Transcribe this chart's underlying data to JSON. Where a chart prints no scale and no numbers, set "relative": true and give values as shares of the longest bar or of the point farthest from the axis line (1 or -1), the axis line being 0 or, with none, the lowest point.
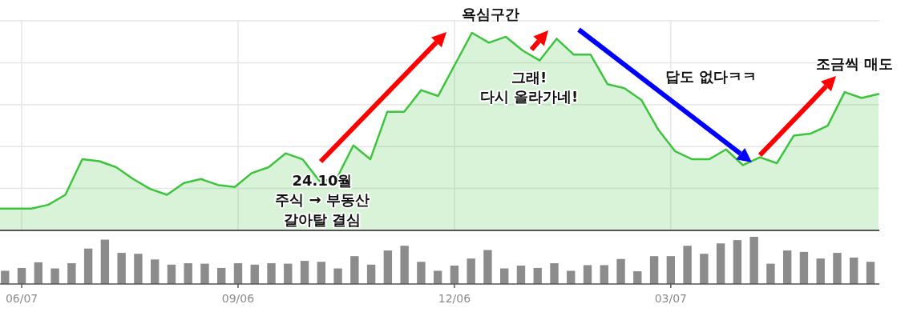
{
  "chart_data": [
    {
      "type": "area",
      "relative": true,
      "grid": true,
      "tick_labels": false,
      "categories": [
        null,
        null,
        null,
        null,
        null,
        null,
        null,
        null,
        null,
        null,
        null,
        null,
        null,
        null,
        null,
        null,
        null,
        null,
        null,
        null,
        null,
        null,
        null,
        null,
        null,
        null,
        null,
        null,
        null,
        null,
        null,
        null,
        null,
        null,
        null,
        null,
        null,
        null,
        null,
        null,
        null,
        null,
        null,
        null,
        null,
        null,
        null,
        null,
        null,
        null,
        null,
        null,
        null
      ],
      "series": [
        {
          "color": "#3cc43c",
          "values": [
            0.11,
            0.11,
            0.11,
            0.13,
            0.18,
            0.36,
            0.35,
            0.32,
            0.26,
            0.21,
            0.18,
            0.24,
            0.26,
            0.23,
            0.22,
            0.29,
            0.32,
            0.39,
            0.36,
            0.25,
            0.26,
            0.43,
            0.36,
            0.6,
            0.6,
            0.71,
            0.68,
            0.84,
            1,
            0.95,
            0.98,
            0.91,
            0.86,
            0.97,
            0.89,
            0.89,
            0.74,
            0.72,
            0.66,
            0.51,
            0.4,
            0.36,
            0.36,
            0.41,
            0.33,
            0.37,
            0.34,
            0.48,
            0.49,
            0.53,
            0.7,
            0.67,
            0.69
          ]
        }
      ],
      "annotations": [
        "24.10월\n주식 → 부동산\n갈아탈 결심",
        "욕심구간",
        "그래!\n다시 올라가네!",
        "답도 없다ㅋㅋ",
        "조금씩 매도"
      ]
    },
    {
      "type": "bar",
      "relative": true,
      "tick_labels": "x",
      "categories": [
        null,
        "06/07",
        null,
        null,
        null,
        null,
        null,
        null,
        null,
        null,
        null,
        null,
        null,
        null,
        "09/06",
        null,
        null,
        null,
        null,
        null,
        null,
        null,
        null,
        null,
        null,
        null,
        null,
        "12/06",
        null,
        null,
        null,
        null,
        null,
        null,
        null,
        null,
        null,
        null,
        null,
        null,
        "03/07",
        null,
        null,
        null,
        null,
        null,
        null,
        null,
        null,
        null,
        null,
        null,
        null
      ],
      "series": [
        {
          "color": "#8c8c8c",
          "values": [
            0.28,
            0.34,
            0.46,
            0.33,
            0.44,
            0.75,
            0.94,
            0.66,
            0.64,
            0.52,
            0.41,
            0.44,
            0.43,
            0.34,
            0.44,
            0.41,
            0.44,
            0.43,
            0.49,
            0.47,
            0.33,
            0.59,
            0.41,
            0.71,
            0.81,
            0.47,
            0.28,
            0.39,
            0.54,
            0.72,
            0.33,
            0.39,
            0.34,
            0.44,
            0.28,
            0.4,
            0.4,
            0.53,
            0.27,
            0.59,
            0.59,
            0.81,
            0.64,
            0.86,
            0.93,
            1,
            0.43,
            0.71,
            0.68,
            0.54,
            0.66,
            0.56,
            0.47
          ]
        }
      ]
    }
  ]
}
